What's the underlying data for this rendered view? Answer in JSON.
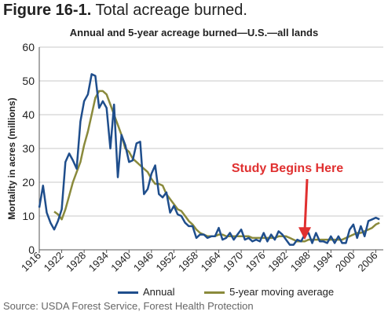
{
  "heading": {
    "figure_number": "Figure 16-1.",
    "figure_title": "Total acreage burned."
  },
  "source": "Source: USDA Forest Service, Forest Health Protection",
  "colors": {
    "annual": "#1f4e8c",
    "moving_average": "#8a8a3c",
    "annotation": "#e03030",
    "grid": "#c8c8c8"
  },
  "annotation": {
    "text": "Study Begins Here",
    "target_year": 1987,
    "target_value": 2.5
  },
  "chart_data": {
    "type": "line",
    "title": "Annual and 5-year acreage burned—U.S.—all lands",
    "ylabel": "Mortality in acres (millions)",
    "xlabel": "",
    "xlim": [
      1916,
      2008
    ],
    "ylim": [
      0,
      60
    ],
    "yticks": [
      0,
      10,
      20,
      30,
      40,
      50,
      60
    ],
    "xticks": [
      1916,
      1922,
      1928,
      1934,
      1940,
      1946,
      1952,
      1958,
      1964,
      1970,
      1976,
      1982,
      1988,
      1994,
      2000,
      2006
    ],
    "grid": true,
    "legend_position": "bottom",
    "series": [
      {
        "name": "Annual",
        "x": [
          1916,
          1917,
          1918,
          1919,
          1920,
          1921,
          1922,
          1923,
          1924,
          1925,
          1926,
          1927,
          1928,
          1929,
          1930,
          1931,
          1932,
          1933,
          1934,
          1935,
          1936,
          1937,
          1938,
          1939,
          1940,
          1941,
          1942,
          1943,
          1944,
          1945,
          1946,
          1947,
          1948,
          1949,
          1950,
          1951,
          1952,
          1953,
          1954,
          1955,
          1956,
          1957,
          1958,
          1959,
          1960,
          1961,
          1962,
          1963,
          1964,
          1965,
          1966,
          1967,
          1968,
          1969,
          1970,
          1971,
          1972,
          1973,
          1974,
          1975,
          1976,
          1977,
          1978,
          1979,
          1980,
          1981,
          1982,
          1983,
          1984,
          1985,
          1986,
          1987,
          1988,
          1989,
          1990,
          1991,
          1992,
          1993,
          1994,
          1995,
          1996,
          1997,
          1998,
          1999,
          2000,
          2001,
          2002,
          2003,
          2004,
          2005,
          2006,
          2007
        ],
        "values": [
          12.5,
          19,
          11,
          8,
          6,
          8.5,
          12,
          26,
          28.5,
          26.5,
          24,
          38,
          44,
          46,
          52,
          51.5,
          42,
          44,
          42,
          30,
          43,
          21.5,
          34,
          31,
          26,
          26.5,
          31.5,
          32,
          16.5,
          18,
          22.5,
          25,
          16.5,
          15.5,
          17,
          11,
          13,
          10.5,
          10,
          8,
          7,
          7,
          3.5,
          4.5,
          4.5,
          3.5,
          4,
          4,
          6.5,
          3,
          3.5,
          5,
          3,
          4.5,
          6,
          3,
          3.5,
          2.5,
          3,
          2.5,
          5,
          2.5,
          4.5,
          3,
          5.5,
          4.5,
          3,
          1.5,
          1.5,
          3,
          2.5,
          4.5,
          5,
          2,
          5,
          2.5,
          2.5,
          2,
          4,
          2,
          4,
          2,
          2,
          6,
          7.5,
          3.5,
          7,
          4,
          8.5,
          9,
          9.5,
          9
        ]
      },
      {
        "name": "5-year moving average",
        "x": [
          1920,
          1921,
          1922,
          1923,
          1924,
          1925,
          1926,
          1927,
          1928,
          1929,
          1930,
          1931,
          1932,
          1933,
          1934,
          1935,
          1936,
          1937,
          1938,
          1939,
          1940,
          1941,
          1942,
          1943,
          1944,
          1945,
          1946,
          1947,
          1948,
          1949,
          1950,
          1951,
          1952,
          1953,
          1954,
          1955,
          1956,
          1957,
          1958,
          1959,
          1960,
          1961,
          1962,
          1963,
          1964,
          1965,
          1966,
          1967,
          1968,
          1969,
          1970,
          1971,
          1972,
          1973,
          1974,
          1975,
          1976,
          1977,
          1978,
          1979,
          1980,
          1981,
          1982,
          1983,
          1984,
          1985,
          1986,
          1987,
          1988,
          1989,
          1990,
          1991,
          1992,
          1993,
          1994,
          1995,
          1996,
          1997,
          1998,
          1999,
          2000,
          2001,
          2002,
          2003,
          2004,
          2005,
          2006,
          2007
        ],
        "values": [
          11.3,
          10.5,
          9,
          12,
          16,
          20,
          23,
          26,
          31,
          35,
          40,
          45,
          47,
          47,
          46,
          43,
          40,
          37,
          34,
          30,
          29,
          27,
          26,
          25,
          24,
          23,
          21,
          19.5,
          19.5,
          19,
          16.5,
          15,
          13.5,
          12,
          11.5,
          10,
          8.5,
          7.5,
          6,
          5,
          4.5,
          4,
          4,
          4,
          4.5,
          4.5,
          4,
          4,
          4,
          4,
          4,
          4,
          4,
          3.5,
          3.5,
          3.5,
          3.5,
          3.5,
          3.5,
          3.5,
          4,
          4,
          4,
          3.5,
          3,
          2.5,
          2.5,
          2.5,
          3,
          3,
          3,
          3,
          3,
          3,
          3,
          3,
          3,
          3,
          3.5,
          4,
          4.5,
          5,
          5,
          5.5,
          6,
          6.5,
          7.5,
          8
        ]
      }
    ]
  }
}
